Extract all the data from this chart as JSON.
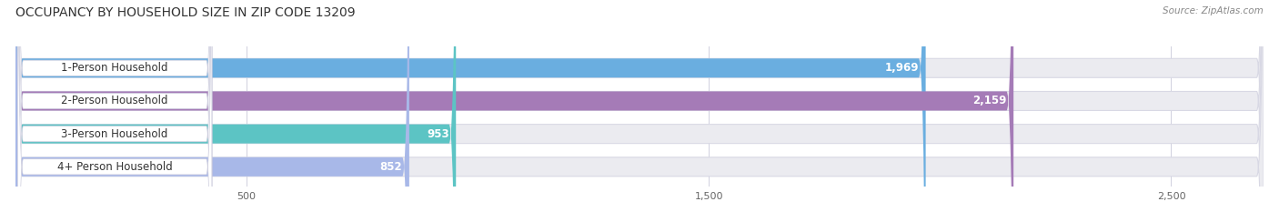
{
  "title": "OCCUPANCY BY HOUSEHOLD SIZE IN ZIP CODE 13209",
  "source": "Source: ZipAtlas.com",
  "categories": [
    "1-Person Household",
    "2-Person Household",
    "3-Person Household",
    "4+ Person Household"
  ],
  "values": [
    1969,
    2159,
    953,
    852
  ],
  "bar_colors": [
    "#6aaee0",
    "#a57bb7",
    "#5cc4c4",
    "#a8b8e8"
  ],
  "background_color": "#ffffff",
  "bar_bg_color": "#ebebf0",
  "label_bg_color": "#ffffff",
  "xlim_max": 2700,
  "xticks": [
    500,
    1500,
    2500
  ],
  "label_fontsize": 8.5,
  "value_fontsize": 8.5,
  "title_fontsize": 10,
  "source_fontsize": 7.5,
  "label_text_color": "#333333",
  "value_text_color": "#555555",
  "title_color": "#333333",
  "source_color": "#888888"
}
